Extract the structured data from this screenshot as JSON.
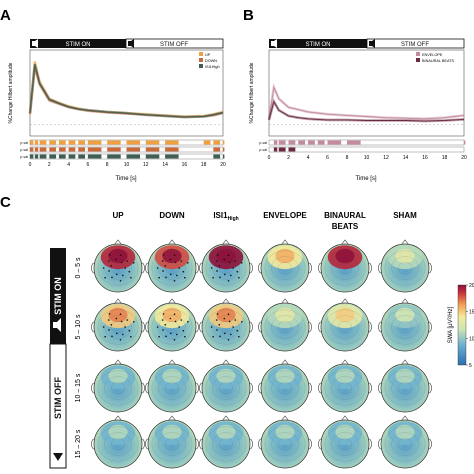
{
  "panels": {
    "a": {
      "letter": "A",
      "stim_on": "STIM ON",
      "stim_off": "STIM OFF",
      "ylabel": "%Change Hilbert amplitude",
      "xlabel": "Time [s]",
      "pval_label": "p-val",
      "legend": [
        "UP",
        "DOWN",
        "ISI1High"
      ],
      "colors": [
        "#f0a040",
        "#c96a3a",
        "#3f5f55"
      ]
    },
    "b": {
      "letter": "B",
      "stim_on": "STIM ON",
      "stim_off": "STIM OFF",
      "ylabel": "%Change Hilbert amplitude",
      "xlabel": "Time [s]",
      "pval_label": "p-val",
      "legend": [
        "ENVELOPE",
        "BINAURAL BEATS"
      ],
      "colors": [
        "#c48aa0",
        "#6b2a3e"
      ]
    },
    "c": {
      "letter": "C",
      "columns": [
        "UP",
        "DOWN",
        "ISI1",
        "ENVELOPE",
        "BINAURAL",
        "SHAM"
      ],
      "isi_sub": "High",
      "column_line2": "BEATS",
      "rows": [
        "0 – 5 s",
        "5 – 10 s",
        "10 – 15 s",
        "15 – 20 s"
      ],
      "stim_on": "STIM ON",
      "stim_off": "STIM OFF",
      "colorbar_label": "SWA [μV²/Hz]",
      "colorbar_ticks": [
        "20",
        "15",
        "10",
        "5"
      ]
    }
  },
  "chart_data": [
    {
      "type": "line",
      "x": [
        0,
        0.5,
        1,
        2,
        3,
        4,
        5,
        6,
        8,
        10,
        12,
        14,
        16,
        18,
        19,
        20
      ],
      "series": [
        {
          "name": "UP",
          "values": [
            20,
            110,
            75,
            45,
            38,
            32,
            28,
            25,
            22,
            20,
            18,
            16,
            14,
            15,
            18,
            22
          ]
        },
        {
          "name": "DOWN",
          "values": [
            18,
            100,
            70,
            42,
            36,
            30,
            27,
            24,
            21,
            19,
            17,
            15,
            13,
            14,
            16,
            20
          ]
        },
        {
          "name": "ISI1High",
          "values": [
            20,
            105,
            72,
            44,
            37,
            31,
            27,
            25,
            22,
            20,
            17,
            15,
            13,
            14,
            17,
            21
          ]
        }
      ],
      "xlim": [
        0,
        20
      ],
      "xticks": [
        "0",
        "2",
        "4",
        "6",
        "8",
        "10",
        "12",
        "14",
        "16",
        "18",
        "20"
      ],
      "ylabel": "%Change Hilbert amplitude",
      "xlabel": "Time [s]"
    },
    {
      "type": "line",
      "x": [
        0,
        0.5,
        1,
        2,
        3,
        4,
        5,
        6,
        8,
        10,
        12,
        14,
        16,
        18,
        19,
        20
      ],
      "series": [
        {
          "name": "ENVELOPE",
          "values": [
            10,
            65,
            45,
            30,
            26,
            22,
            20,
            18,
            16,
            14,
            12,
            11,
            10,
            12,
            14,
            16
          ]
        },
        {
          "name": "BINAURAL BEATS",
          "values": [
            8,
            40,
            25,
            15,
            12,
            10,
            9,
            8,
            8,
            7,
            7,
            7,
            6,
            7,
            8,
            9
          ]
        }
      ],
      "xlim": [
        0,
        20
      ],
      "xticks": [
        "0",
        "2",
        "4",
        "6",
        "8",
        "10",
        "12",
        "14",
        "16",
        "18",
        "20"
      ],
      "ylabel": "%Change Hilbert amplitude",
      "xlabel": "Time [s]"
    },
    {
      "type": "heatmap",
      "columns": [
        "UP",
        "DOWN",
        "ISI1High",
        "ENVELOPE",
        "BINAURAL BEATS",
        "SHAM"
      ],
      "rows": [
        "0 – 5 s",
        "5 – 10 s",
        "10 – 15 s",
        "15 – 20 s"
      ],
      "frontal_swa": [
        [
          19,
          18,
          20,
          14,
          19,
          11
        ],
        [
          15,
          14,
          15,
          11,
          13,
          10
        ],
        [
          9,
          9,
          9,
          9,
          9,
          9
        ],
        [
          9,
          9,
          9,
          9,
          9,
          9
        ]
      ],
      "colorbar_range": [
        5,
        20
      ],
      "colorbar_label": "SWA [μV²/Hz]"
    }
  ]
}
